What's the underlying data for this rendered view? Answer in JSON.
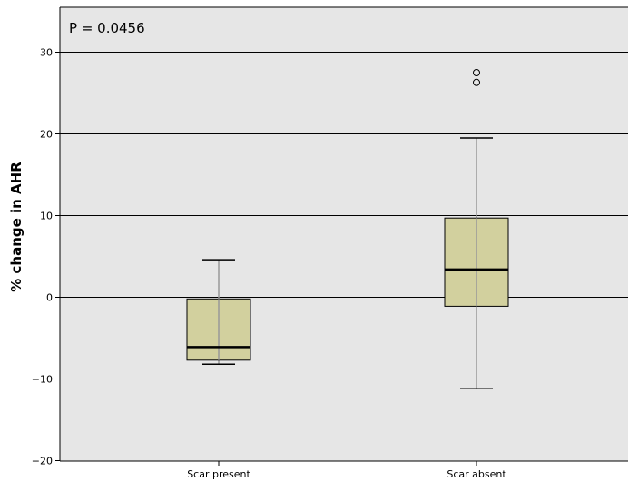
{
  "chart_data": {
    "type": "box",
    "ylabel": "% change in AHR",
    "xlabel": "",
    "ylim": [
      -20,
      35
    ],
    "yticks": [
      -20,
      -10,
      0,
      10,
      20,
      30
    ],
    "grid": true,
    "annotation": "P = 0.0456",
    "colors": {
      "plot_background": "#e6e6e6",
      "box_fill": "#d2d09e",
      "whisker": "#999999",
      "grid": "#000000"
    },
    "groups": [
      {
        "category": "Scar present",
        "whisker_low": -8.2,
        "q1": -7.7,
        "median": -6.1,
        "q3": -0.2,
        "whisker_high": 4.6,
        "outliers": []
      },
      {
        "category": "Scar absent",
        "whisker_low": -11.2,
        "q1": -1.1,
        "median": 3.4,
        "q3": 9.7,
        "whisker_high": 19.5,
        "outliers": [
          26.3,
          27.5
        ]
      }
    ]
  }
}
